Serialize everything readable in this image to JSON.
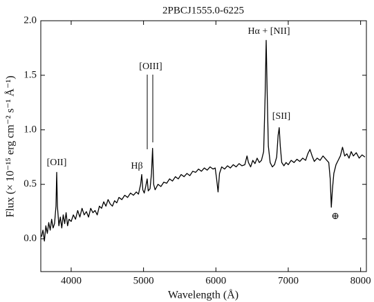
{
  "chart_data": {
    "type": "line",
    "title": "2PBCJ1555.0-6225",
    "x_label": "Wavelength (Å)",
    "y_label": "Flux (× 10⁻¹⁵ erg cm⁻² s⁻¹ Å⁻¹)",
    "color": "#000000",
    "annotations": [
      "[OII]",
      "Hβ",
      "[OIII]",
      "Hα + [NII]",
      "[SII]",
      "⊕"
    ],
    "xlim": [
      3580,
      8080
    ],
    "ylim": [
      -0.3,
      2.0
    ],
    "xticks": [
      4000,
      5000,
      6000,
      7000,
      8000
    ],
    "yticks": [
      {
        "value": 0,
        "label": "0.0"
      },
      {
        "value": 0.5,
        "label": "0.5"
      },
      {
        "value": 1,
        "label": "1.0"
      },
      {
        "value": 1.5,
        "label": "1.5"
      },
      {
        "value": 2,
        "label": "2.0"
      }
    ],
    "grid": false,
    "x": [
      3590,
      3610,
      3630,
      3650,
      3670,
      3690,
      3710,
      3730,
      3750,
      3770,
      3790,
      3800,
      3810,
      3830,
      3850,
      3870,
      3890,
      3910,
      3930,
      3950,
      3970,
      4000,
      4030,
      4060,
      4090,
      4120,
      4150,
      4180,
      4210,
      4240,
      4270,
      4300,
      4330,
      4360,
      4390,
      4420,
      4450,
      4480,
      4510,
      4540,
      4570,
      4600,
      4630,
      4660,
      4700,
      4740,
      4780,
      4820,
      4860,
      4900,
      4930,
      4960,
      4975,
      4990,
      5010,
      5030,
      5050,
      5065,
      5090,
      5110,
      5125,
      5140,
      5160,
      5200,
      5240,
      5280,
      5320,
      5360,
      5400,
      5440,
      5480,
      5520,
      5560,
      5600,
      5640,
      5680,
      5720,
      5760,
      5800,
      5840,
      5880,
      5920,
      5960,
      5990,
      6010,
      6030,
      6050,
      6080,
      6120,
      6160,
      6200,
      6240,
      6280,
      6320,
      6360,
      6400,
      6430,
      6450,
      6480,
      6510,
      6540,
      6570,
      6600,
      6630,
      6660,
      6680,
      6695,
      6710,
      6725,
      6750,
      6780,
      6810,
      6840,
      6860,
      6875,
      6890,
      6910,
      6940,
      6970,
      7000,
      7040,
      7080,
      7120,
      7160,
      7200,
      7240,
      7270,
      7300,
      7330,
      7360,
      7400,
      7440,
      7480,
      7520,
      7560,
      7580,
      7595,
      7610,
      7630,
      7660,
      7690,
      7720,
      7750,
      7780,
      7810,
      7840,
      7870,
      7900,
      7940,
      7980,
      8020,
      8060
    ],
    "values": [
      0.02,
      0.08,
      -0.02,
      0.12,
      0.05,
      0.15,
      0.08,
      0.18,
      0.1,
      0.14,
      0.3,
      0.61,
      0.3,
      0.12,
      0.2,
      0.1,
      0.22,
      0.14,
      0.24,
      0.12,
      0.18,
      0.16,
      0.22,
      0.18,
      0.26,
      0.2,
      0.28,
      0.22,
      0.25,
      0.2,
      0.28,
      0.24,
      0.26,
      0.22,
      0.3,
      0.28,
      0.34,
      0.3,
      0.36,
      0.32,
      0.3,
      0.35,
      0.33,
      0.38,
      0.36,
      0.4,
      0.38,
      0.42,
      0.4,
      0.43,
      0.41,
      0.5,
      0.59,
      0.45,
      0.42,
      0.48,
      0.55,
      0.44,
      0.46,
      0.6,
      0.83,
      0.5,
      0.45,
      0.5,
      0.48,
      0.52,
      0.51,
      0.55,
      0.53,
      0.57,
      0.55,
      0.59,
      0.57,
      0.6,
      0.58,
      0.62,
      0.61,
      0.64,
      0.62,
      0.65,
      0.63,
      0.66,
      0.64,
      0.65,
      0.55,
      0.43,
      0.6,
      0.66,
      0.64,
      0.67,
      0.65,
      0.68,
      0.66,
      0.69,
      0.67,
      0.68,
      0.76,
      0.7,
      0.66,
      0.72,
      0.69,
      0.74,
      0.7,
      0.72,
      0.8,
      1.3,
      1.82,
      1.3,
      0.85,
      0.7,
      0.66,
      0.68,
      0.75,
      0.95,
      1.02,
      0.85,
      0.7,
      0.67,
      0.7,
      0.68,
      0.72,
      0.7,
      0.73,
      0.71,
      0.74,
      0.72,
      0.78,
      0.82,
      0.76,
      0.71,
      0.74,
      0.72,
      0.76,
      0.73,
      0.7,
      0.55,
      0.29,
      0.45,
      0.6,
      0.68,
      0.72,
      0.76,
      0.84,
      0.76,
      0.78,
      0.74,
      0.8,
      0.76,
      0.79,
      0.74,
      0.77,
      0.75
    ]
  }
}
